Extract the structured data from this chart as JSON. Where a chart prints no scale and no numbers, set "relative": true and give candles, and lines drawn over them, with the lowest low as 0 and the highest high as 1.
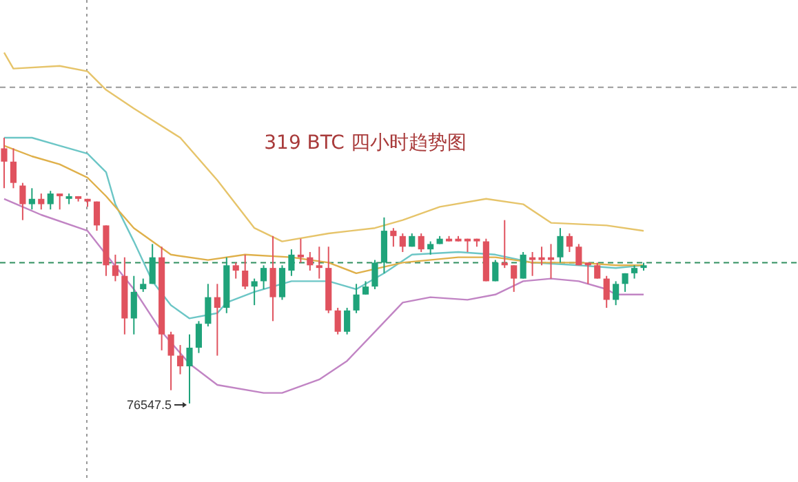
{
  "chart_data": {
    "type": "candlestick",
    "title": "319 BTC 四小时趋势图",
    "relative": true,
    "categories": [
      null,
      null,
      null,
      null,
      null,
      null,
      null,
      null,
      null,
      null,
      null,
      null,
      null,
      null,
      null,
      null,
      null,
      null,
      null,
      null,
      null,
      null,
      null,
      null,
      null,
      null,
      null,
      null,
      null,
      null,
      null,
      null,
      null,
      null,
      null,
      null,
      null,
      null,
      null,
      null,
      null,
      null,
      null,
      null,
      null,
      null,
      null,
      null,
      null,
      null,
      null,
      null,
      null,
      null,
      null,
      null,
      null,
      null,
      null,
      null,
      null,
      null,
      null,
      null,
      null,
      null,
      null,
      null,
      null,
      null
    ],
    "ohlc": [
      [
        0.96,
        1.0,
        0.81,
        0.91
      ],
      [
        0.91,
        0.96,
        0.81,
        0.83
      ],
      [
        0.82,
        0.83,
        0.69,
        0.75
      ],
      [
        0.75,
        0.81,
        0.73,
        0.77
      ],
      [
        0.77,
        0.79,
        0.73,
        0.75
      ],
      [
        0.75,
        0.8,
        0.73,
        0.79
      ],
      [
        0.79,
        0.79,
        0.73,
        0.78
      ],
      [
        0.77,
        0.79,
        0.75,
        0.78
      ],
      [
        0.78,
        0.78,
        0.76,
        0.77
      ],
      [
        0.77,
        0.77,
        0.74,
        0.76
      ],
      [
        0.76,
        0.76,
        0.65,
        0.67
      ],
      [
        0.67,
        0.67,
        0.48,
        0.52
      ],
      [
        0.52,
        0.56,
        0.46,
        0.48
      ],
      [
        0.48,
        0.55,
        0.26,
        0.32
      ],
      [
        0.32,
        0.48,
        0.26,
        0.42
      ],
      [
        0.43,
        0.47,
        0.42,
        0.45
      ],
      [
        0.45,
        0.6,
        0.45,
        0.55
      ],
      [
        0.55,
        0.59,
        0.2,
        0.26
      ],
      [
        0.26,
        0.27,
        0.05,
        0.18
      ],
      [
        0.18,
        0.22,
        0.11,
        0.14
      ],
      [
        0.14,
        0.26,
        0,
        0.21
      ],
      [
        0.21,
        0.31,
        0.19,
        0.3
      ],
      [
        0.3,
        0.45,
        0.29,
        0.4
      ],
      [
        0.4,
        0.45,
        0.18,
        0.36
      ],
      [
        0.36,
        0.55,
        0.34,
        0.52
      ],
      [
        0.52,
        0.53,
        0.47,
        0.5
      ],
      [
        0.5,
        0.56,
        0.43,
        0.44
      ],
      [
        0.44,
        0.47,
        0.37,
        0.46
      ],
      [
        0.46,
        0.52,
        0.43,
        0.51
      ],
      [
        0.51,
        0.63,
        0.31,
        0.4
      ],
      [
        0.4,
        0.52,
        0.39,
        0.51
      ],
      [
        0.5,
        0.58,
        0.48,
        0.56
      ],
      [
        0.56,
        0.62,
        0.53,
        0.55
      ],
      [
        0.55,
        0.57,
        0.5,
        0.52
      ],
      [
        0.52,
        0.59,
        0.47,
        0.51
      ],
      [
        0.51,
        0.59,
        0.34,
        0.35
      ],
      [
        0.35,
        0.36,
        0.26,
        0.27
      ],
      [
        0.27,
        0.36,
        0.26,
        0.35
      ],
      [
        0.35,
        0.45,
        0.34,
        0.41
      ],
      [
        0.41,
        0.46,
        0.41,
        0.44
      ],
      [
        0.44,
        0.54,
        0.43,
        0.53
      ],
      [
        0.53,
        0.7,
        0.49,
        0.65
      ],
      [
        0.65,
        0.66,
        0.59,
        0.63
      ],
      [
        0.63,
        0.64,
        0.57,
        0.59
      ],
      [
        0.59,
        0.64,
        0.59,
        0.63
      ],
      [
        0.63,
        0.64,
        0.57,
        0.58
      ],
      [
        0.58,
        0.61,
        0.56,
        0.6
      ],
      [
        0.6,
        0.63,
        0.6,
        0.62
      ],
      [
        0.62,
        0.63,
        0.61,
        0.61
      ],
      [
        0.62,
        0.63,
        0.61,
        0.61
      ],
      [
        0.62,
        0.62,
        0.57,
        0.61
      ],
      [
        0.62,
        0.62,
        0.59,
        0.61
      ],
      [
        0.61,
        0.62,
        0.46,
        0.46
      ],
      [
        0.46,
        0.54,
        0.46,
        0.53
      ],
      [
        0.53,
        0.69,
        0.51,
        0.52
      ],
      [
        0.52,
        0.52,
        0.42,
        0.47
      ],
      [
        0.47,
        0.57,
        0.47,
        0.56
      ],
      [
        0.55,
        0.57,
        0.48,
        0.54
      ],
      [
        0.55,
        0.59,
        0.52,
        0.54
      ],
      [
        0.55,
        0.6,
        0.47,
        0.54
      ],
      [
        0.55,
        0.66,
        0.53,
        0.63
      ],
      [
        0.63,
        0.64,
        0.57,
        0.59
      ],
      [
        0.59,
        0.6,
        0.52,
        0.52
      ],
      [
        0.53,
        0.53,
        0.45,
        0.52
      ],
      [
        0.52,
        0.53,
        0.47,
        0.47
      ],
      [
        0.47,
        0.48,
        0.36,
        0.39
      ],
      [
        0.39,
        0.46,
        0.37,
        0.45
      ],
      [
        0.45,
        0.49,
        0.42,
        0.49
      ],
      [
        0.49,
        0.52,
        0.47,
        0.51
      ],
      [
        0.51,
        0.53,
        0.5,
        0.52
      ]
    ],
    "colors": [
      "#e0525e",
      "#e0525e",
      "#e0525e",
      "#1fa37a",
      "#e0525e",
      "#1fa37a",
      "#e0525e",
      "#1fa37a",
      "#e0525e",
      "#e0525e",
      "#e0525e",
      "#e0525e",
      "#e0525e",
      "#e0525e",
      "#1fa37a",
      "#1fa37a",
      "#1fa37a",
      "#e0525e",
      "#e0525e",
      "#e0525e",
      "#1fa37a",
      "#1fa37a",
      "#1fa37a",
      "#e0525e",
      "#1fa37a",
      "#e0525e",
      "#e0525e",
      "#1fa37a",
      "#1fa37a",
      "#e0525e",
      "#1fa37a",
      "#1fa37a",
      "#e0525e",
      "#e0525e",
      "#e0525e",
      "#e0525e",
      "#e0525e",
      "#1fa37a",
      "#1fa37a",
      "#1fa37a",
      "#1fa37a",
      "#1fa37a",
      "#e0525e",
      "#e0525e",
      "#1fa37a",
      "#e0525e",
      "#1fa37a",
      "#1fa37a",
      "#e0525e",
      "#e0525e",
      "#e0525e",
      "#e0525e",
      "#e0525e",
      "#1fa37a",
      "#e0525e",
      "#e0525e",
      "#1fa37a",
      "#e0525e",
      "#e0525e",
      "#e0525e",
      "#1fa37a",
      "#e0525e",
      "#e0525e",
      "#e0525e",
      "#e0525e",
      "#e0525e",
      "#1fa37a",
      "#1fa37a",
      "#1fa37a",
      "#1fa37a"
    ],
    "series": [
      {
        "type": "line",
        "color": "#e6c46a",
        "values": [
          1.32,
          1.26,
          null,
          null,
          null,
          null,
          1.27,
          null,
          null,
          1.25,
          null,
          1.18,
          null,
          null,
          1.11,
          null,
          null,
          null,
          null,
          1.0,
          null,
          null,
          null,
          0.84,
          null,
          null,
          null,
          0.66,
          null,
          null,
          0.61,
          null,
          null,
          null,
          null,
          0.64,
          null,
          null,
          null,
          null,
          0.66,
          null,
          null,
          0.69,
          null,
          null,
          null,
          0.74,
          null,
          null,
          null,
          null,
          0.77,
          null,
          null,
          null,
          0.75,
          null,
          null,
          0.68,
          null,
          null,
          null,
          null,
          null,
          0.67,
          null,
          null,
          null,
          0.65
        ]
      },
      {
        "type": "line",
        "color": "#6cc6c6",
        "values": [
          1.0,
          null,
          null,
          1.0,
          null,
          null,
          0.97,
          null,
          null,
          0.94,
          null,
          0.87,
          0.75,
          null,
          0.61,
          null,
          0.46,
          null,
          0.37,
          null,
          0.32,
          null,
          null,
          0.34,
          0.38,
          null,
          null,
          0.42,
          null,
          null,
          null,
          0.46,
          null,
          null,
          null,
          0.46,
          null,
          null,
          0.43,
          null,
          null,
          0.49,
          null,
          null,
          0.56,
          null,
          null,
          null,
          null,
          0.57,
          null,
          null,
          null,
          0.56,
          null,
          null,
          null,
          0.53,
          null,
          null,
          null,
          null,
          0.52,
          null,
          null,
          null,
          0.51,
          null,
          null,
          0.52
        ]
      },
      {
        "type": "line",
        "color": "#dfb04a",
        "values": [
          0.97,
          null,
          null,
          0.93,
          null,
          null,
          0.9,
          null,
          null,
          0.85,
          null,
          0.78,
          null,
          null,
          0.66,
          null,
          null,
          null,
          0.56,
          null,
          null,
          null,
          0.54,
          null,
          null,
          null,
          0.56,
          null,
          null,
          null,
          null,
          0.55,
          null,
          null,
          null,
          0.53,
          null,
          null,
          0.49,
          null,
          null,
          null,
          null,
          0.53,
          null,
          null,
          null,
          null,
          null,
          0.55,
          null,
          null,
          null,
          0.55,
          null,
          null,
          null,
          0.53,
          null,
          null,
          null,
          null,
          0.53,
          null,
          null,
          null,
          0.52,
          null,
          null,
          0.52
        ]
      },
      {
        "type": "line",
        "color": "#c184c4",
        "values": [
          0.77,
          null,
          0.74,
          null,
          0.71,
          null,
          null,
          null,
          null,
          0.65,
          null,
          0.56,
          null,
          null,
          0.43,
          null,
          null,
          0.27,
          null,
          null,
          0.15,
          null,
          null,
          0.07,
          null,
          null,
          null,
          null,
          0.04,
          null,
          0.04,
          null,
          null,
          null,
          0.09,
          null,
          null,
          0.16,
          null,
          null,
          0.27,
          null,
          null,
          0.38,
          null,
          null,
          0.4,
          null,
          null,
          null,
          0.39,
          null,
          null,
          0.41,
          null,
          null,
          0.46,
          null,
          null,
          0.47,
          null,
          null,
          0.46,
          null,
          null,
          0.43,
          0.41,
          null,
          null,
          0.41
        ]
      }
    ],
    "ref_lines": [
      {
        "axis": "y",
        "value": 1.19,
        "color": "#999999",
        "line_style": "dashed"
      },
      {
        "axis": "y",
        "value": 0.53,
        "color": "#2f8f5f",
        "line_style": "dashed"
      }
    ],
    "annotations": [
      "76547.5"
    ]
  }
}
